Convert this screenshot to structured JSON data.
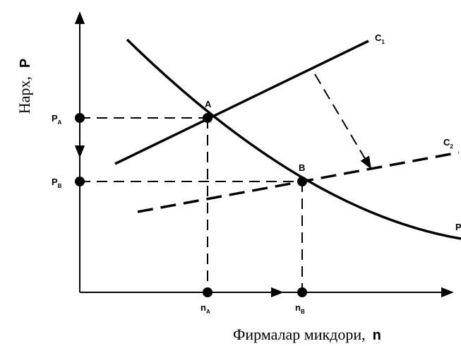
{
  "diagram": {
    "axes": {
      "y_title": "Нарх,",
      "y_symbol": "P",
      "x_title": "Фирмалар микдори,",
      "x_symbol": "n"
    },
    "curves": [
      {
        "id": "c1",
        "label": "C",
        "subscript": "1",
        "style": "solid"
      },
      {
        "id": "c2",
        "label": "C",
        "subscript": "2",
        "style": "dashed"
      },
      {
        "id": "p",
        "label": "P",
        "subscript": "",
        "style": "solid"
      }
    ],
    "points": [
      {
        "id": "A",
        "label": "A"
      },
      {
        "id": "B",
        "label": "B"
      }
    ],
    "y_ticks": [
      {
        "label": "P",
        "subscript": "A"
      },
      {
        "label": "P",
        "subscript": "B"
      }
    ],
    "x_ticks": [
      {
        "label": "n",
        "subscript": "A"
      },
      {
        "label": "n",
        "subscript": "B"
      }
    ]
  }
}
